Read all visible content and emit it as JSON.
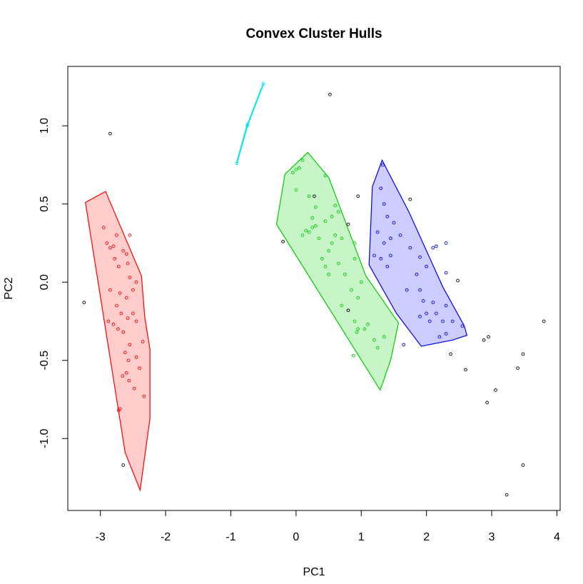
{
  "chart_data": {
    "type": "scatter",
    "title": "Convex Cluster Hulls",
    "xlabel": "PC1",
    "ylabel": "PC2",
    "xlim": [
      -3.5,
      4.05
    ],
    "ylim": [
      -1.46,
      1.38
    ],
    "xticks": [
      -3,
      -2,
      -1,
      0,
      1,
      2,
      3,
      4
    ],
    "yticks": [
      -1.0,
      -0.5,
      0.0,
      0.5,
      1.0
    ],
    "ytick_labels": [
      "-1.0",
      "-0.5",
      "0.0",
      "0.5",
      "1.0"
    ],
    "grid": false,
    "clusters": [
      {
        "id": "red",
        "color": "#ff0000",
        "fill": "#ffcccc",
        "hull": [
          [
            -3.23,
            0.51
          ],
          [
            -2.92,
            0.58
          ],
          [
            -2.37,
            0.04
          ],
          [
            -2.32,
            -0.22
          ],
          [
            -2.24,
            -0.43
          ],
          [
            -2.24,
            -0.87
          ],
          [
            -2.39,
            -1.33
          ],
          [
            -2.62,
            -1.09
          ],
          [
            -3.23,
            0.51
          ]
        ],
        "points": [
          [
            -2.95,
            0.35
          ],
          [
            -2.9,
            0.25
          ],
          [
            -2.85,
            0.22
          ],
          [
            -2.8,
            0.23
          ],
          [
            -2.78,
            0.15
          ],
          [
            -2.72,
            0.1
          ],
          [
            -2.65,
            0.2
          ],
          [
            -2.6,
            0.18
          ],
          [
            -2.58,
            0.12
          ],
          [
            -2.55,
            0.03
          ],
          [
            -2.75,
            0.3
          ],
          [
            -2.55,
            0.3
          ],
          [
            -2.45,
            0.0
          ],
          [
            -2.5,
            -0.05
          ],
          [
            -2.6,
            -0.1
          ],
          [
            -2.7,
            -0.07
          ],
          [
            -2.75,
            -0.15
          ],
          [
            -2.85,
            -0.05
          ],
          [
            -2.88,
            -0.25
          ],
          [
            -2.8,
            -0.27
          ],
          [
            -2.73,
            -0.3
          ],
          [
            -2.65,
            -0.32
          ],
          [
            -2.68,
            -0.2
          ],
          [
            -2.58,
            -0.23
          ],
          [
            -2.5,
            -0.2
          ],
          [
            -2.45,
            -0.25
          ],
          [
            -2.55,
            -0.4
          ],
          [
            -2.62,
            -0.45
          ],
          [
            -2.57,
            -0.5
          ],
          [
            -2.45,
            -0.48
          ],
          [
            -2.35,
            -0.38
          ],
          [
            -2.4,
            -0.55
          ],
          [
            -2.6,
            -0.58
          ],
          [
            -2.66,
            -0.6
          ],
          [
            -2.56,
            -0.63
          ],
          [
            -2.48,
            -0.68
          ],
          [
            -2.33,
            -0.73
          ],
          [
            -2.72,
            -0.82
          ],
          [
            -2.7,
            -0.81
          ]
        ]
      },
      {
        "id": "cyan",
        "color": "#00e5ee",
        "fill": "none",
        "hull": [
          [
            -0.91,
            0.76
          ],
          [
            -0.74,
            1.01
          ],
          [
            -0.5,
            1.27
          ],
          [
            -0.75,
            1.0
          ],
          [
            -0.91,
            0.76
          ]
        ],
        "points": [
          [
            -0.91,
            0.76
          ],
          [
            -0.74,
            1.01
          ],
          [
            -0.5,
            1.27
          ],
          [
            -0.75,
            1.0
          ]
        ]
      },
      {
        "id": "green",
        "color": "#00cc00",
        "fill": "#c8f5c8",
        "hull": [
          [
            -0.3,
            0.37
          ],
          [
            -0.17,
            0.69
          ],
          [
            0.18,
            0.83
          ],
          [
            0.5,
            0.67
          ],
          [
            1.07,
            0.04
          ],
          [
            1.57,
            -0.26
          ],
          [
            1.45,
            -0.5
          ],
          [
            1.29,
            -0.69
          ],
          [
            -0.3,
            0.37
          ]
        ],
        "points": [
          [
            -0.05,
            0.7
          ],
          [
            0.0,
            0.72
          ],
          [
            0.05,
            0.73
          ],
          [
            0.1,
            0.78
          ],
          [
            0.45,
            0.68
          ],
          [
            0.0,
            0.59
          ],
          [
            0.2,
            0.55
          ],
          [
            0.3,
            0.48
          ],
          [
            0.6,
            0.49
          ],
          [
            0.55,
            0.42
          ],
          [
            0.65,
            0.45
          ],
          [
            0.25,
            0.41
          ],
          [
            0.45,
            0.39
          ],
          [
            0.2,
            0.32
          ],
          [
            0.25,
            0.35
          ],
          [
            0.3,
            0.36
          ],
          [
            0.1,
            0.3
          ],
          [
            0.15,
            0.33
          ],
          [
            0.35,
            0.28
          ],
          [
            0.5,
            0.2
          ],
          [
            0.55,
            0.25
          ],
          [
            0.6,
            0.3
          ],
          [
            0.7,
            0.28
          ],
          [
            0.9,
            0.15
          ],
          [
            0.75,
            0.05
          ],
          [
            0.65,
            0.12
          ],
          [
            0.45,
            0.1
          ],
          [
            0.5,
            0.05
          ],
          [
            0.4,
            0.15
          ],
          [
            0.9,
            0.25
          ],
          [
            1.0,
            0.0
          ],
          [
            0.95,
            -0.1
          ],
          [
            0.85,
            -0.05
          ],
          [
            0.7,
            -0.15
          ],
          [
            0.9,
            -0.25
          ],
          [
            1.05,
            -0.3
          ],
          [
            1.1,
            -0.27
          ],
          [
            1.2,
            -0.37
          ],
          [
            0.93,
            -0.32
          ],
          [
            0.95,
            -0.3
          ],
          [
            0.88,
            -0.47
          ],
          [
            1.25,
            -0.42
          ],
          [
            1.35,
            -0.35
          ]
        ]
      },
      {
        "id": "blue",
        "color": "#0000ee",
        "fill": "#ccccff",
        "hull": [
          [
            1.17,
            0.61
          ],
          [
            1.32,
            0.78
          ],
          [
            1.73,
            0.45
          ],
          [
            2.25,
            -0.03
          ],
          [
            2.58,
            -0.28
          ],
          [
            2.62,
            -0.34
          ],
          [
            2.4,
            -0.37
          ],
          [
            1.92,
            -0.41
          ],
          [
            1.54,
            -0.2
          ],
          [
            1.12,
            0.11
          ],
          [
            1.17,
            0.61
          ]
        ],
        "points": [
          [
            1.33,
            0.75
          ],
          [
            1.3,
            0.6
          ],
          [
            1.35,
            0.5
          ],
          [
            1.4,
            0.42
          ],
          [
            1.5,
            0.38
          ],
          [
            1.25,
            0.32
          ],
          [
            1.35,
            0.25
          ],
          [
            1.45,
            0.28
          ],
          [
            1.3,
            0.15
          ],
          [
            1.4,
            0.1
          ],
          [
            1.45,
            0.17
          ],
          [
            1.2,
            0.17
          ],
          [
            1.6,
            0.3
          ],
          [
            1.75,
            0.22
          ],
          [
            1.9,
            0.16
          ],
          [
            2.1,
            0.22
          ],
          [
            2.15,
            0.23
          ],
          [
            2.3,
            0.25
          ],
          [
            2.0,
            0.1
          ],
          [
            1.85,
            0.05
          ],
          [
            2.3,
            0.06
          ],
          [
            1.7,
            -0.05
          ],
          [
            1.9,
            -0.05
          ],
          [
            1.95,
            -0.12
          ],
          [
            2.1,
            -0.13
          ],
          [
            2.3,
            -0.15
          ],
          [
            2.15,
            -0.2
          ],
          [
            2.0,
            -0.2
          ],
          [
            1.9,
            -0.22
          ],
          [
            2.05,
            -0.25
          ],
          [
            2.25,
            -0.25
          ],
          [
            2.4,
            -0.25
          ],
          [
            2.55,
            -0.28
          ],
          [
            2.3,
            -0.33
          ],
          [
            2.2,
            -0.35
          ],
          [
            1.65,
            -0.4
          ]
        ]
      },
      {
        "id": "noise",
        "color": "#000000",
        "fill": "none",
        "hull": [],
        "points": [
          [
            -2.85,
            0.95
          ],
          [
            -3.25,
            -0.13
          ],
          [
            -2.65,
            -1.17
          ],
          [
            0.52,
            1.2
          ],
          [
            -0.2,
            0.26
          ],
          [
            0.28,
            0.55
          ],
          [
            0.95,
            0.55
          ],
          [
            0.8,
            0.37
          ],
          [
            0.8,
            -0.18
          ],
          [
            1.75,
            0.53
          ],
          [
            2.48,
            0.01
          ],
          [
            2.37,
            -0.46
          ],
          [
            2.6,
            -0.56
          ],
          [
            2.88,
            -0.37
          ],
          [
            2.95,
            -0.35
          ],
          [
            3.8,
            -0.25
          ],
          [
            3.48,
            -0.46
          ],
          [
            3.4,
            -0.55
          ],
          [
            3.06,
            -0.69
          ],
          [
            2.93,
            -0.77
          ],
          [
            3.48,
            -1.17
          ],
          [
            3.23,
            -1.36
          ]
        ]
      }
    ]
  }
}
